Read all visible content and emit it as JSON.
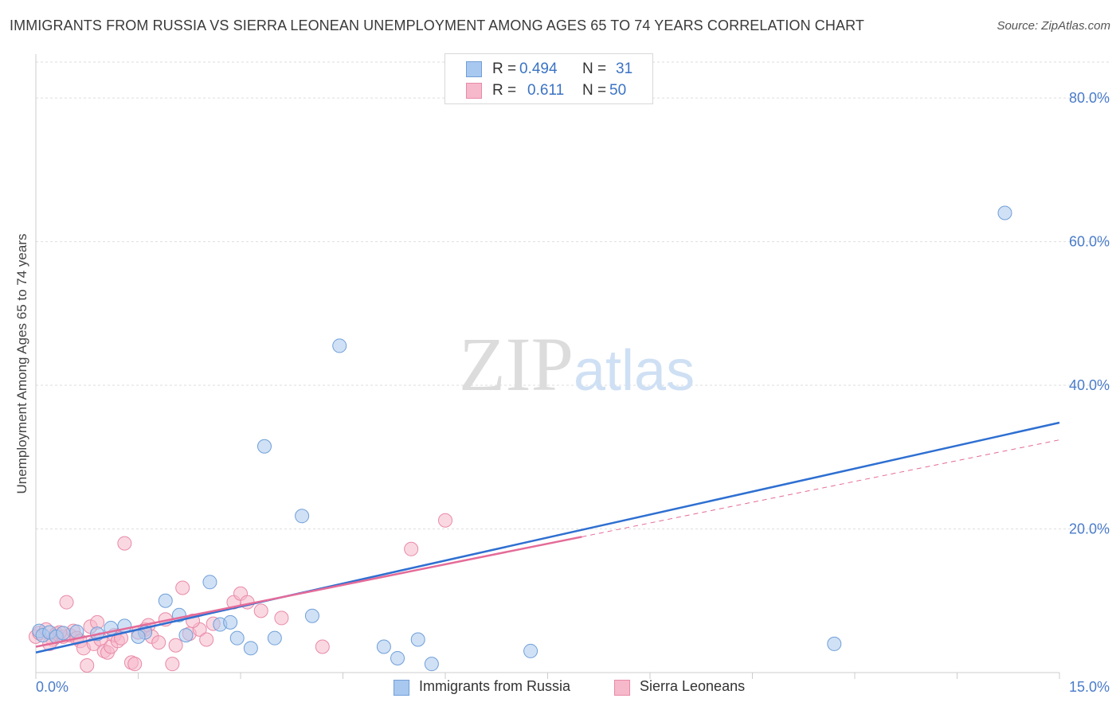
{
  "header": {
    "title": "IMMIGRANTS FROM RUSSIA VS SIERRA LEONEAN UNEMPLOYMENT AMONG AGES 65 TO 74 YEARS CORRELATION CHART",
    "source": "Source: ZipAtlas.com"
  },
  "watermark": {
    "zip": "ZIP",
    "atlas": "atlas"
  },
  "legend": {
    "rows": [
      {
        "r_label": "R =",
        "r_value": "0.494",
        "n_label": "N =",
        "n_value": "31"
      },
      {
        "r_label": "R =",
        "r_value": "0.611",
        "n_label": "N =",
        "n_value": "50"
      }
    ]
  },
  "colors": {
    "series1": "#a9c8ef",
    "series1_stroke": "#6f9fd8",
    "series1_line": "#2e6fd1",
    "series2": "#f6b8cb",
    "series2_stroke": "#e98aa8",
    "series2_line": "#e46b98"
  },
  "chart_data": {
    "type": "scatter",
    "title": "IMMIGRANTS FROM RUSSIA VS SIERRA LEONEAN UNEMPLOYMENT AMONG AGES 65 TO 74 YEARS CORRELATION CHART",
    "xlabel": "",
    "ylabel": "Unemployment Among Ages 65 to 74 years",
    "xlim": [
      0,
      15
    ],
    "ylim": [
      0,
      85
    ],
    "x_tick_labels": [
      "0.0%",
      "15.0%"
    ],
    "y_ticks": [
      20,
      40,
      60,
      80
    ],
    "y_tick_labels": [
      "20.0%",
      "40.0%",
      "60.0%",
      "80.0%"
    ],
    "legend_position": "bottom-center",
    "series": [
      {
        "name": "Immigrants from Russia",
        "R": 0.494,
        "N": 31,
        "points": [
          [
            0.05,
            5.8
          ],
          [
            0.1,
            5.2
          ],
          [
            0.2,
            5.6
          ],
          [
            0.3,
            5.0
          ],
          [
            0.4,
            5.5
          ],
          [
            0.6,
            5.7
          ],
          [
            0.9,
            5.4
          ],
          [
            1.1,
            6.2
          ],
          [
            1.3,
            6.5
          ],
          [
            1.6,
            5.6
          ],
          [
            1.5,
            5.0
          ],
          [
            1.9,
            10.0
          ],
          [
            2.2,
            5.2
          ],
          [
            2.1,
            8.0
          ],
          [
            2.55,
            12.6
          ],
          [
            2.7,
            6.7
          ],
          [
            2.85,
            7.0
          ],
          [
            2.95,
            4.8
          ],
          [
            3.15,
            3.4
          ],
          [
            3.35,
            31.5
          ],
          [
            3.5,
            4.8
          ],
          [
            3.9,
            21.8
          ],
          [
            4.05,
            7.9
          ],
          [
            4.45,
            45.5
          ],
          [
            5.1,
            3.6
          ],
          [
            5.3,
            2.0
          ],
          [
            5.6,
            4.6
          ],
          [
            5.8,
            1.2
          ],
          [
            7.25,
            3.0
          ],
          [
            11.7,
            4.0
          ],
          [
            14.2,
            64.0
          ]
        ],
        "trend": {
          "x": [
            0,
            15
          ],
          "y": [
            2.8,
            34.8
          ]
        }
      },
      {
        "name": "Sierra Leoneans",
        "R": 0.611,
        "N": 50,
        "points": [
          [
            0.0,
            5.0
          ],
          [
            0.05,
            5.5
          ],
          [
            0.15,
            6.0
          ],
          [
            0.25,
            4.6
          ],
          [
            0.3,
            5.4
          ],
          [
            0.4,
            5.0
          ],
          [
            0.45,
            9.8
          ],
          [
            0.5,
            5.2
          ],
          [
            0.55,
            5.8
          ],
          [
            0.6,
            4.8
          ],
          [
            0.65,
            4.4
          ],
          [
            0.7,
            3.4
          ],
          [
            0.75,
            1.0
          ],
          [
            0.8,
            6.4
          ],
          [
            0.85,
            4.0
          ],
          [
            0.9,
            7.0
          ],
          [
            0.95,
            4.6
          ],
          [
            1.0,
            3.0
          ],
          [
            1.05,
            2.8
          ],
          [
            1.1,
            3.6
          ],
          [
            1.15,
            5.2
          ],
          [
            1.2,
            4.4
          ],
          [
            1.3,
            18.0
          ],
          [
            1.4,
            1.4
          ],
          [
            1.45,
            1.2
          ],
          [
            1.5,
            5.6
          ],
          [
            1.6,
            6.0
          ],
          [
            1.65,
            6.6
          ],
          [
            1.7,
            5.0
          ],
          [
            1.8,
            4.2
          ],
          [
            1.9,
            7.4
          ],
          [
            2.0,
            1.2
          ],
          [
            2.05,
            3.8
          ],
          [
            2.15,
            11.8
          ],
          [
            2.25,
            5.4
          ],
          [
            2.4,
            6.0
          ],
          [
            2.5,
            4.6
          ],
          [
            2.6,
            6.8
          ],
          [
            2.9,
            9.8
          ],
          [
            3.0,
            11.0
          ],
          [
            3.1,
            9.8
          ],
          [
            3.3,
            8.6
          ],
          [
            3.6,
            7.6
          ],
          [
            4.2,
            3.6
          ],
          [
            5.5,
            17.2
          ],
          [
            6.0,
            21.2
          ],
          [
            0.2,
            4.0
          ],
          [
            0.35,
            5.6
          ],
          [
            1.25,
            4.8
          ],
          [
            2.3,
            7.2
          ]
        ],
        "trend": {
          "x": [
            0,
            8
          ],
          "y": [
            3.6,
            18.9
          ]
        },
        "trend_dashed": {
          "x": [
            8,
            15
          ],
          "y": [
            18.9,
            32.4
          ]
        }
      }
    ]
  }
}
